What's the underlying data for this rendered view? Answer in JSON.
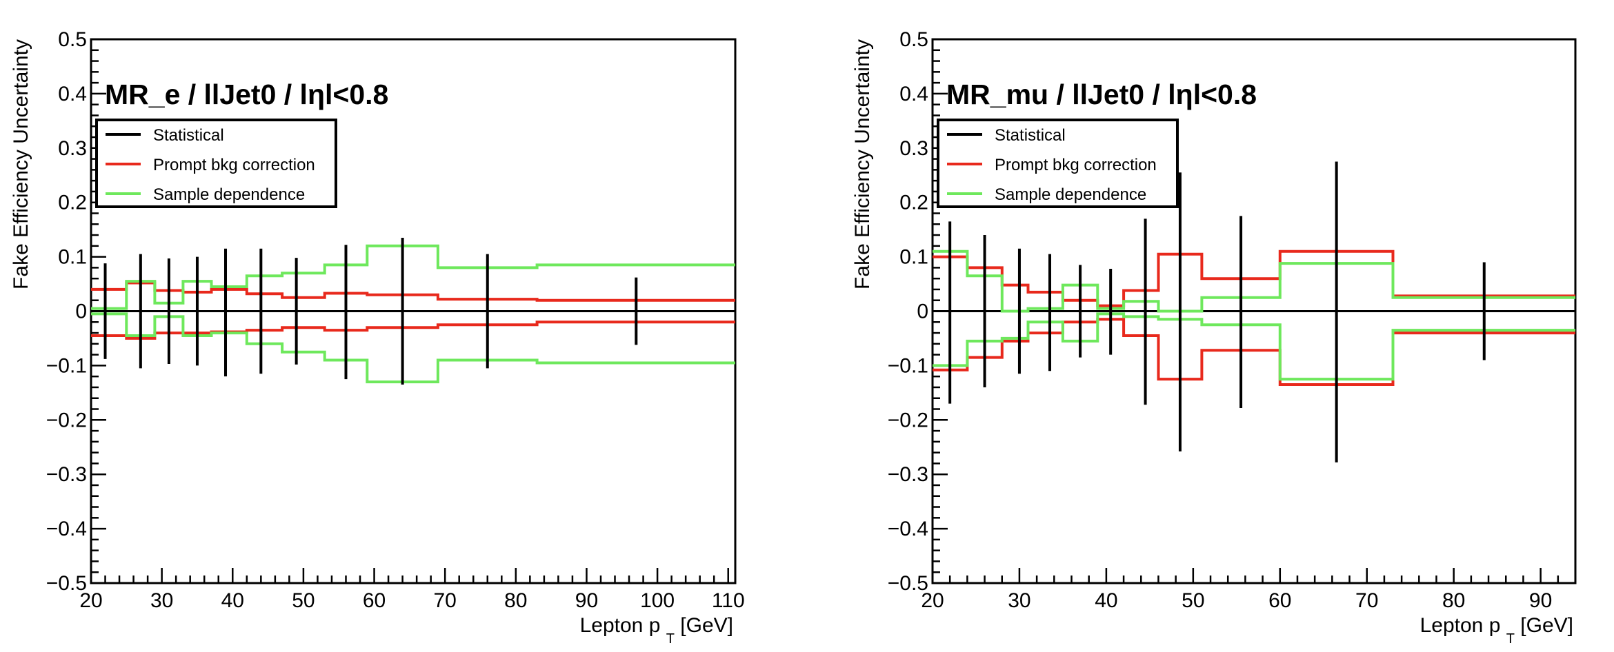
{
  "chart_data": [
    {
      "type": "line",
      "title": "MR_e / llJet0 / lηl<0.8",
      "xlabel": "Lepton p",
      "xlabel_sub": "T",
      "xlabel_unit": "[GeV]",
      "ylabel": "Fake Efficiency Uncertainty",
      "xlim": [
        20,
        111
      ],
      "ylim": [
        -0.5,
        0.5
      ],
      "x_ticks": [
        20,
        30,
        40,
        50,
        60,
        70,
        80,
        90,
        100,
        110
      ],
      "y_ticks": [
        -0.5,
        -0.4,
        -0.3,
        -0.2,
        -0.1,
        0,
        0.1,
        0.2,
        0.3,
        0.4,
        0.5
      ],
      "y_tick_labels": [
        "−0.5",
        "−0.4",
        "−0.3",
        "−0.2",
        "−0.1",
        "0",
        "0.1",
        "0.2",
        "0.3",
        "0.4",
        "0.5"
      ],
      "bin_edges": [
        20,
        25,
        29,
        33,
        37,
        42,
        47,
        53,
        59,
        69,
        83,
        111
      ],
      "legend_position": "top-left",
      "series": [
        {
          "name": "Statistical",
          "color": "#000000",
          "style": "errorbar",
          "x": [
            22,
            27,
            31,
            35,
            39,
            44,
            49,
            56,
            64,
            76,
            97
          ],
          "up": [
            0.088,
            0.105,
            0.097,
            0.1,
            0.115,
            0.115,
            0.098,
            0.122,
            0.135,
            0.105,
            0.062
          ],
          "down": [
            -0.088,
            -0.105,
            -0.097,
            -0.1,
            -0.12,
            -0.115,
            -0.098,
            -0.125,
            -0.135,
            -0.105,
            -0.062
          ]
        },
        {
          "name": "Prompt bkg correction",
          "color": "#e8291c",
          "style": "step",
          "up": [
            0.04,
            0.052,
            0.038,
            0.035,
            0.04,
            0.032,
            0.025,
            0.033,
            0.03,
            0.022,
            0.02
          ],
          "down": [
            -0.045,
            -0.05,
            -0.04,
            -0.04,
            -0.038,
            -0.035,
            -0.03,
            -0.035,
            -0.03,
            -0.025,
            -0.02
          ]
        },
        {
          "name": "Sample dependence",
          "color": "#6ee85c",
          "style": "step",
          "up": [
            0.005,
            0.055,
            0.015,
            0.055,
            0.045,
            0.065,
            0.07,
            0.085,
            0.12,
            0.08,
            0.085
          ],
          "down": [
            -0.005,
            -0.045,
            -0.01,
            -0.045,
            -0.04,
            -0.06,
            -0.075,
            -0.09,
            -0.13,
            -0.09,
            -0.095
          ]
        }
      ]
    },
    {
      "type": "line",
      "title": "MR_mu / llJet0 / lηl<0.8",
      "xlabel": "Lepton p",
      "xlabel_sub": "T",
      "xlabel_unit": "[GeV]",
      "ylabel": "Fake Efficiency Uncertainty",
      "xlim": [
        20,
        94
      ],
      "ylim": [
        -0.5,
        0.5
      ],
      "x_ticks": [
        20,
        30,
        40,
        50,
        60,
        70,
        80,
        90
      ],
      "y_ticks": [
        -0.5,
        -0.4,
        -0.3,
        -0.2,
        -0.1,
        0,
        0.1,
        0.2,
        0.3,
        0.4,
        0.5
      ],
      "y_tick_labels": [
        "−0.5",
        "−0.4",
        "−0.3",
        "−0.2",
        "−0.1",
        "0",
        "0.1",
        "0.2",
        "0.3",
        "0.4",
        "0.5"
      ],
      "bin_edges": [
        20,
        24,
        28,
        31,
        35,
        39,
        42,
        46,
        51,
        60,
        73,
        94
      ],
      "legend_position": "top-left",
      "series": [
        {
          "name": "Statistical",
          "color": "#000000",
          "style": "errorbar",
          "x": [
            22,
            26,
            30,
            33.5,
            37,
            40.5,
            44.5,
            48.5,
            55.5,
            66.5,
            83.5
          ],
          "up": [
            0.165,
            0.14,
            0.115,
            0.105,
            0.085,
            0.078,
            0.17,
            0.255,
            0.175,
            0.275,
            0.09
          ],
          "down": [
            -0.17,
            -0.14,
            -0.115,
            -0.11,
            -0.085,
            -0.08,
            -0.172,
            -0.258,
            -0.178,
            -0.278,
            -0.09
          ]
        },
        {
          "name": "Prompt bkg correction",
          "color": "#e8291c",
          "style": "step",
          "up": [
            0.1,
            0.08,
            0.048,
            0.035,
            0.02,
            0.01,
            0.038,
            0.105,
            0.06,
            0.11,
            0.028
          ],
          "down": [
            -0.108,
            -0.085,
            -0.055,
            -0.04,
            -0.02,
            -0.015,
            -0.045,
            -0.125,
            -0.072,
            -0.135,
            -0.04
          ]
        },
        {
          "name": "Sample dependence",
          "color": "#6ee85c",
          "style": "step",
          "up": [
            0.11,
            0.065,
            0.0,
            0.005,
            0.048,
            0.005,
            0.018,
            0.0,
            0.025,
            0.088,
            0.025
          ],
          "down": [
            -0.1,
            -0.055,
            -0.05,
            -0.02,
            -0.055,
            -0.005,
            -0.01,
            -0.015,
            -0.025,
            -0.125,
            -0.035
          ]
        }
      ]
    }
  ]
}
